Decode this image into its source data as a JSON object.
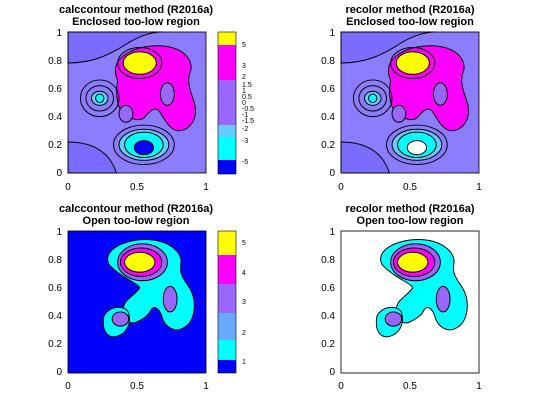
{
  "figure": {
    "panels": [
      {
        "title_line1": "calccontour method (R2016a)",
        "title_line2": "Enclosed too-low region"
      },
      {
        "title_line1": "recolor method (R2016a)",
        "title_line2": "Enclosed too-low region"
      },
      {
        "title_line1": "calccontour method (R2016a)",
        "title_line2": "Open too-low region"
      },
      {
        "title_line1": "recolor method (R2016a)",
        "title_line2": "Open too-low region"
      }
    ]
  },
  "chart_data": [
    {
      "type": "contour",
      "title": "calccontour method (R2016a)\nEnclosed too-low region",
      "xlim": [
        0,
        1
      ],
      "ylim": [
        0,
        1
      ],
      "x_ticks": [
        "0",
        "0.5",
        "1"
      ],
      "y_ticks": [
        "0",
        "0.2",
        "0.4",
        "0.6",
        "0.8",
        "1"
      ],
      "too_low_region": "enclosed",
      "colorbar": {
        "ticks": [
          "-5",
          "-3",
          "-2",
          "-1.5",
          "-1",
          "-0.5",
          "0",
          "0.5",
          "1",
          "1.5",
          "2",
          "3",
          "5"
        ],
        "colors": [
          "#0000ff",
          "#00ffff",
          "#66ccff",
          "#9966ff",
          "#ff00ff",
          "#ffff00"
        ]
      },
      "fill_colors": {
        "below_range": "#0000ff",
        "background": "#8c7cff",
        "positive_bumps": "#ff00ff",
        "peak": "#ffff00",
        "negative_bumps": "#00ffff"
      }
    },
    {
      "type": "contour",
      "title": "recolor method (R2016a)\nEnclosed too-low region",
      "xlim": [
        0,
        1
      ],
      "ylim": [
        0,
        1
      ],
      "x_ticks": [
        "0",
        "0.5",
        "1"
      ],
      "y_ticks": [
        "0",
        "0.2",
        "0.4",
        "0.6",
        "0.8",
        "1"
      ],
      "too_low_region": "enclosed",
      "fill_colors": {
        "below_range": "#ffffff",
        "background": "#8c7cff",
        "positive_bumps": "#ff00ff",
        "peak": "#ffff00",
        "negative_bumps": "#00ffff"
      }
    },
    {
      "type": "contour",
      "title": "calccontour method (R2016a)\nOpen too-low region",
      "xlim": [
        0,
        1
      ],
      "ylim": [
        0,
        1
      ],
      "x_ticks": [
        "0",
        "0.5",
        "1"
      ],
      "y_ticks": [
        "0",
        "0.2",
        "0.4",
        "0.6",
        "0.8",
        "1"
      ],
      "too_low_region": "open",
      "colorbar": {
        "ticks": [
          "1",
          "2",
          "3",
          "4",
          "5"
        ],
        "colors": [
          "#0000ff",
          "#00ffff",
          "#66aaff",
          "#9966ff",
          "#ff00ff",
          "#ffff00"
        ]
      },
      "fill_colors": {
        "below_range": "#0000ff",
        "level_1": "#00ffff",
        "level_2": "#9966ff",
        "level_3": "#ff00ff",
        "peak": "#ffff00"
      }
    },
    {
      "type": "contour",
      "title": "recolor method (R2016a)\nOpen too-low region",
      "xlim": [
        0,
        1
      ],
      "ylim": [
        0,
        1
      ],
      "x_ticks": [
        "0",
        "0.5",
        "1"
      ],
      "y_ticks": [
        "0",
        "0.2",
        "0.4",
        "0.6",
        "0.8",
        "1"
      ],
      "too_low_region": "open",
      "fill_colors": {
        "below_range": "#ffffff",
        "level_1": "#00ffff",
        "level_2": "#9966ff",
        "level_3": "#ff00ff",
        "peak": "#ffff00"
      }
    }
  ]
}
